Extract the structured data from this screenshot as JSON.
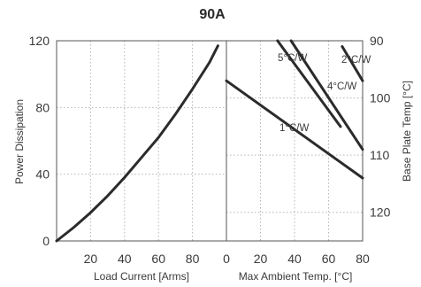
{
  "chart_data": [
    {
      "type": "line",
      "title": "90A",
      "xlabel": "Load Current  [Arms]",
      "ylabel": "Power Dissipation",
      "xlim": [
        0,
        100
      ],
      "ylim": [
        0,
        120
      ],
      "xticks": [
        20,
        40,
        60,
        80
      ],
      "yticks": [
        0,
        40,
        80,
        120
      ],
      "grid": true,
      "series": [
        {
          "x": [
            0,
            10,
            20,
            30,
            40,
            50,
            60,
            70,
            80,
            90,
            95
          ],
          "y": [
            0,
            8,
            17,
            27,
            38,
            50,
            62,
            76,
            91,
            107,
            117
          ]
        }
      ]
    },
    {
      "type": "line",
      "xlabel": "Max Ambient Temp. [°C]",
      "ylabel": "Base Plate Temp [°C]",
      "xlim": [
        0,
        80
      ],
      "ylim": [
        90,
        125
      ],
      "xticks": [
        0,
        20,
        40,
        60,
        80
      ],
      "yticks": [
        90,
        100,
        110,
        120
      ],
      "y_axis_side": "right",
      "y_inverted": true,
      "grid": true,
      "series": [
        {
          "name": "1°C/W",
          "x": [
            0,
            80
          ],
          "y": [
            97,
            114
          ]
        },
        {
          "name": "4°C/W",
          "x": [
            38,
            80
          ],
          "y": [
            90,
            109
          ]
        },
        {
          "name": "5°C/W",
          "x": [
            30,
            67
          ],
          "y": [
            90,
            105
          ]
        },
        {
          "name": "2°C/W",
          "x": [
            68,
            80
          ],
          "y": [
            91,
            97
          ]
        }
      ]
    }
  ]
}
